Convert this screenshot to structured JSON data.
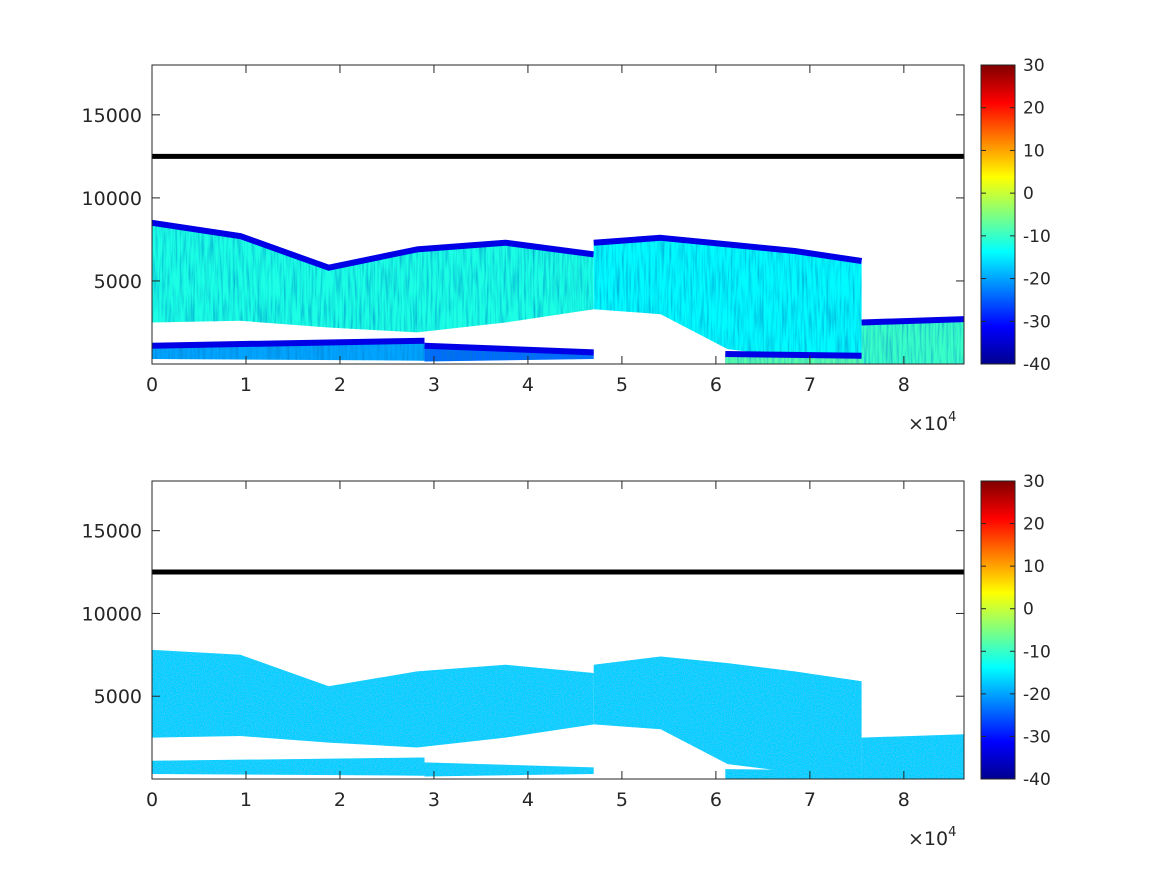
{
  "chart_data": [
    {
      "type": "heatmap",
      "title": "",
      "xlabel": "",
      "ylabel": "",
      "xlim": [
        0,
        86400
      ],
      "ylim": [
        0,
        18000
      ],
      "x_ticks": [
        0,
        1,
        2,
        3,
        4,
        5,
        6,
        7,
        8
      ],
      "x_tick_labels": [
        "0",
        "1",
        "2",
        "3",
        "4",
        "5",
        "6",
        "7",
        "8"
      ],
      "x_multiplier": {
        "base": "×10",
        "exponent": "4"
      },
      "y_ticks": [
        5000,
        10000,
        15000
      ],
      "y_tick_labels": [
        "5000",
        "10000",
        "15000"
      ],
      "grid": false,
      "colormap": "jet",
      "colorbar": {
        "range": [
          -40,
          30
        ],
        "ticks": [
          -40,
          -30,
          -20,
          -10,
          0,
          10,
          20,
          30
        ],
        "tick_labels": [
          "-40",
          "-30",
          "-20",
          "-10",
          "0",
          "10",
          "20",
          "30"
        ]
      },
      "horizontal_line": {
        "y": 12500,
        "color": "#000000"
      },
      "mode": "varied",
      "regions": [
        {
          "x": [
            0,
            47000
          ],
          "y_bottom": [
            2500,
            2600,
            2200,
            1900,
            2500,
            3300
          ],
          "y_top": [
            8500,
            7700,
            5800,
            6900,
            7300,
            6600
          ],
          "value": -12
        },
        {
          "x": [
            47000,
            75500
          ],
          "y_bottom": [
            3300,
            3000,
            900,
            400,
            0
          ],
          "y_top": [
            7300,
            7600,
            7200,
            6800,
            6200
          ],
          "value": -14
        },
        {
          "x": [
            75500,
            86400
          ],
          "y_bottom": [
            0,
            0
          ],
          "y_top": [
            2500,
            2700
          ],
          "value": -10
        },
        {
          "x": [
            0,
            29000
          ],
          "y_bottom": [
            300,
            200
          ],
          "y_top": [
            1100,
            1400
          ],
          "value": -20
        },
        {
          "x": [
            29000,
            47000
          ],
          "y_bottom": [
            150,
            300
          ],
          "y_top": [
            1100,
            700
          ],
          "value": -24
        },
        {
          "x": [
            61000,
            75500
          ],
          "y_bottom": [
            0,
            0
          ],
          "y_top": [
            600,
            500
          ],
          "value": -8
        }
      ]
    },
    {
      "type": "heatmap",
      "title": "",
      "xlabel": "",
      "ylabel": "",
      "xlim": [
        0,
        86400
      ],
      "ylim": [
        0,
        18000
      ],
      "x_ticks": [
        0,
        1,
        2,
        3,
        4,
        5,
        6,
        7,
        8
      ],
      "x_tick_labels": [
        "0",
        "1",
        "2",
        "3",
        "4",
        "5",
        "6",
        "7",
        "8"
      ],
      "x_multiplier": {
        "base": "×10",
        "exponent": "4"
      },
      "y_ticks": [
        5000,
        10000,
        15000
      ],
      "y_tick_labels": [
        "5000",
        "10000",
        "15000"
      ],
      "grid": false,
      "colormap": "jet",
      "colorbar": {
        "range": [
          -40,
          30
        ],
        "ticks": [
          -40,
          -30,
          -20,
          -10,
          0,
          10,
          20,
          30
        ],
        "tick_labels": [
          "-40",
          "-30",
          "-20",
          "-10",
          "0",
          "10",
          "20",
          "30"
        ]
      },
      "horizontal_line": {
        "y": 12500,
        "color": "#000000"
      },
      "mode": "uniform",
      "uniform_value": -17,
      "regions": [
        {
          "x": [
            0,
            47000
          ],
          "y_bottom": [
            2500,
            2600,
            2200,
            1900,
            2500,
            3300
          ],
          "y_top": [
            7800,
            7500,
            5600,
            6500,
            6900,
            6400
          ],
          "value": -17
        },
        {
          "x": [
            47000,
            75500
          ],
          "y_bottom": [
            3300,
            3000,
            900,
            400,
            0
          ],
          "y_top": [
            6900,
            7400,
            7000,
            6500,
            5900
          ],
          "value": -17
        },
        {
          "x": [
            75500,
            86400
          ],
          "y_bottom": [
            0,
            0
          ],
          "y_top": [
            2500,
            2700
          ],
          "value": -17
        },
        {
          "x": [
            0,
            29000
          ],
          "y_bottom": [
            300,
            200
          ],
          "y_top": [
            1100,
            1300
          ],
          "value": -17
        },
        {
          "x": [
            29000,
            47000
          ],
          "y_bottom": [
            150,
            300
          ],
          "y_top": [
            1000,
            700
          ],
          "value": -17
        },
        {
          "x": [
            61000,
            75500
          ],
          "y_bottom": [
            0,
            0
          ],
          "y_top": [
            600,
            500
          ],
          "value": -17
        }
      ]
    }
  ]
}
